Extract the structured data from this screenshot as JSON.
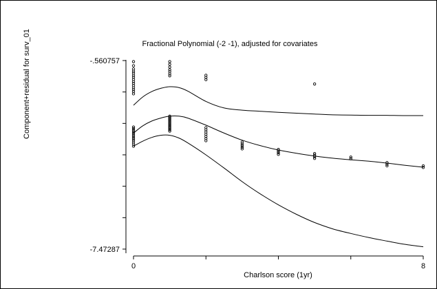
{
  "chart_data": {
    "type": "line",
    "title": "Fractional Polynomial (-2 -1), adjusted for covariates",
    "xlabel": "Charlson score (1yr)",
    "ylabel": "Component+residual for surv_01",
    "xlim": [
      0,
      8
    ],
    "ylim": [
      -7.47287,
      -0.560757
    ],
    "x_ticks": [
      0,
      2,
      4,
      6,
      8
    ],
    "x_tick_labels": [
      "0",
      "",
      "",
      "",
      "8"
    ],
    "y_tick_labels": [
      {
        "value": -0.560757,
        "label": "-.560757"
      },
      {
        "value": -1.7128,
        "label": ""
      },
      {
        "value": -2.8649,
        "label": ""
      },
      {
        "value": -4.0169,
        "label": ""
      },
      {
        "value": -5.1689,
        "label": ""
      },
      {
        "value": -6.3209,
        "label": ""
      },
      {
        "value": -7.47287,
        "label": "-7.47287"
      }
    ],
    "grid": false,
    "series": [
      {
        "role": "fit",
        "x": [
          0,
          0.25,
          0.5,
          0.75,
          1,
          1.25,
          1.5,
          2,
          2.5,
          3,
          3.5,
          4,
          4.5,
          5,
          5.5,
          6,
          6.5,
          7,
          7.5,
          8
        ],
        "y": [
          -3.22,
          -2.96,
          -2.78,
          -2.67,
          -2.6,
          -2.6,
          -2.67,
          -2.93,
          -3.22,
          -3.48,
          -3.68,
          -3.84,
          -3.96,
          -4.06,
          -4.14,
          -4.2,
          -4.25,
          -4.32,
          -4.4,
          -4.47
        ]
      },
      {
        "role": "upper",
        "x": [
          0,
          0.25,
          0.5,
          0.75,
          1,
          1.25,
          1.5,
          2,
          2.5,
          3,
          3.5,
          4,
          4.5,
          5,
          5.5,
          6,
          6.5,
          7,
          7.5,
          8
        ],
        "y": [
          -2.2,
          -1.9,
          -1.7,
          -1.58,
          -1.52,
          -1.55,
          -1.68,
          -2.06,
          -2.3,
          -2.38,
          -2.42,
          -2.46,
          -2.49,
          -2.52,
          -2.55,
          -2.56,
          -2.57,
          -2.57,
          -2.58,
          -2.58
        ]
      },
      {
        "role": "lower",
        "x": [
          0,
          0.25,
          0.5,
          0.75,
          1,
          1.25,
          1.5,
          2,
          2.5,
          3,
          3.5,
          4,
          4.5,
          5,
          5.5,
          6,
          6.5,
          7,
          7.5,
          8
        ],
        "y": [
          -3.7,
          -3.52,
          -3.38,
          -3.3,
          -3.3,
          -3.4,
          -3.58,
          -4.02,
          -4.5,
          -5.0,
          -5.45,
          -5.85,
          -6.2,
          -6.5,
          -6.73,
          -6.9,
          -7.05,
          -7.18,
          -7.3,
          -7.39
        ]
      },
      {
        "role": "residuals",
        "points": [
          {
            "x": 0,
            "y": -0.6
          },
          {
            "x": 0,
            "y": -0.75
          },
          {
            "x": 0,
            "y": -0.87
          },
          {
            "x": 0,
            "y": -0.95
          },
          {
            "x": 0,
            "y": -1.02
          },
          {
            "x": 0,
            "y": -1.1
          },
          {
            "x": 0,
            "y": -1.17
          },
          {
            "x": 0,
            "y": -1.25
          },
          {
            "x": 0,
            "y": -1.33
          },
          {
            "x": 0,
            "y": -1.4
          },
          {
            "x": 0,
            "y": -1.48
          },
          {
            "x": 0,
            "y": -1.56
          },
          {
            "x": 0,
            "y": -1.63
          },
          {
            "x": 0,
            "y": -1.7
          },
          {
            "x": 0,
            "y": -1.78
          },
          {
            "x": 0,
            "y": -3.0
          },
          {
            "x": 0,
            "y": -3.06
          },
          {
            "x": 0,
            "y": -3.12
          },
          {
            "x": 0,
            "y": -3.18
          },
          {
            "x": 0,
            "y": -3.24
          },
          {
            "x": 0,
            "y": -3.3
          },
          {
            "x": 0,
            "y": -3.36
          },
          {
            "x": 0,
            "y": -3.42
          },
          {
            "x": 0,
            "y": -3.48
          },
          {
            "x": 0,
            "y": -3.55
          },
          {
            "x": 0,
            "y": -3.62
          },
          {
            "x": 0,
            "y": -3.7
          },
          {
            "x": 1,
            "y": -0.6
          },
          {
            "x": 1,
            "y": -0.7
          },
          {
            "x": 1,
            "y": -0.8
          },
          {
            "x": 1,
            "y": -0.9
          },
          {
            "x": 1,
            "y": -0.97
          },
          {
            "x": 1,
            "y": -1.05
          },
          {
            "x": 1,
            "y": -1.12
          },
          {
            "x": 1,
            "y": -2.6
          },
          {
            "x": 1,
            "y": -2.65
          },
          {
            "x": 1,
            "y": -2.7
          },
          {
            "x": 1,
            "y": -2.75
          },
          {
            "x": 1,
            "y": -2.8
          },
          {
            "x": 1,
            "y": -2.85
          },
          {
            "x": 1,
            "y": -2.9
          },
          {
            "x": 1,
            "y": -2.95
          },
          {
            "x": 1,
            "y": -3.0
          },
          {
            "x": 1,
            "y": -3.05
          },
          {
            "x": 1,
            "y": -3.1
          },
          {
            "x": 1,
            "y": -3.15
          },
          {
            "x": 2,
            "y": -1.1
          },
          {
            "x": 2,
            "y": -1.18
          },
          {
            "x": 2,
            "y": -1.26
          },
          {
            "x": 2,
            "y": -3.02
          },
          {
            "x": 2,
            "y": -3.1
          },
          {
            "x": 2,
            "y": -3.18
          },
          {
            "x": 2,
            "y": -3.26
          },
          {
            "x": 2,
            "y": -3.34
          },
          {
            "x": 2,
            "y": -3.42
          },
          {
            "x": 2,
            "y": -3.5
          },
          {
            "x": 3,
            "y": -3.55
          },
          {
            "x": 3,
            "y": -3.62
          },
          {
            "x": 3,
            "y": -3.68
          },
          {
            "x": 3,
            "y": -3.74
          },
          {
            "x": 3,
            "y": -3.8
          },
          {
            "x": 4,
            "y": -3.82
          },
          {
            "x": 4,
            "y": -3.88
          },
          {
            "x": 4,
            "y": -3.94
          },
          {
            "x": 4,
            "y": -4.0
          },
          {
            "x": 5,
            "y": -1.42
          },
          {
            "x": 5,
            "y": -3.97
          },
          {
            "x": 5,
            "y": -4.03
          },
          {
            "x": 5,
            "y": -4.09
          },
          {
            "x": 5,
            "y": -4.15
          },
          {
            "x": 6,
            "y": -4.1
          },
          {
            "x": 6,
            "y": -4.16
          },
          {
            "x": 7,
            "y": -4.3
          },
          {
            "x": 7,
            "y": -4.36
          },
          {
            "x": 7,
            "y": -4.42
          },
          {
            "x": 8,
            "y": -4.42
          },
          {
            "x": 8,
            "y": -4.48
          }
        ]
      }
    ]
  }
}
